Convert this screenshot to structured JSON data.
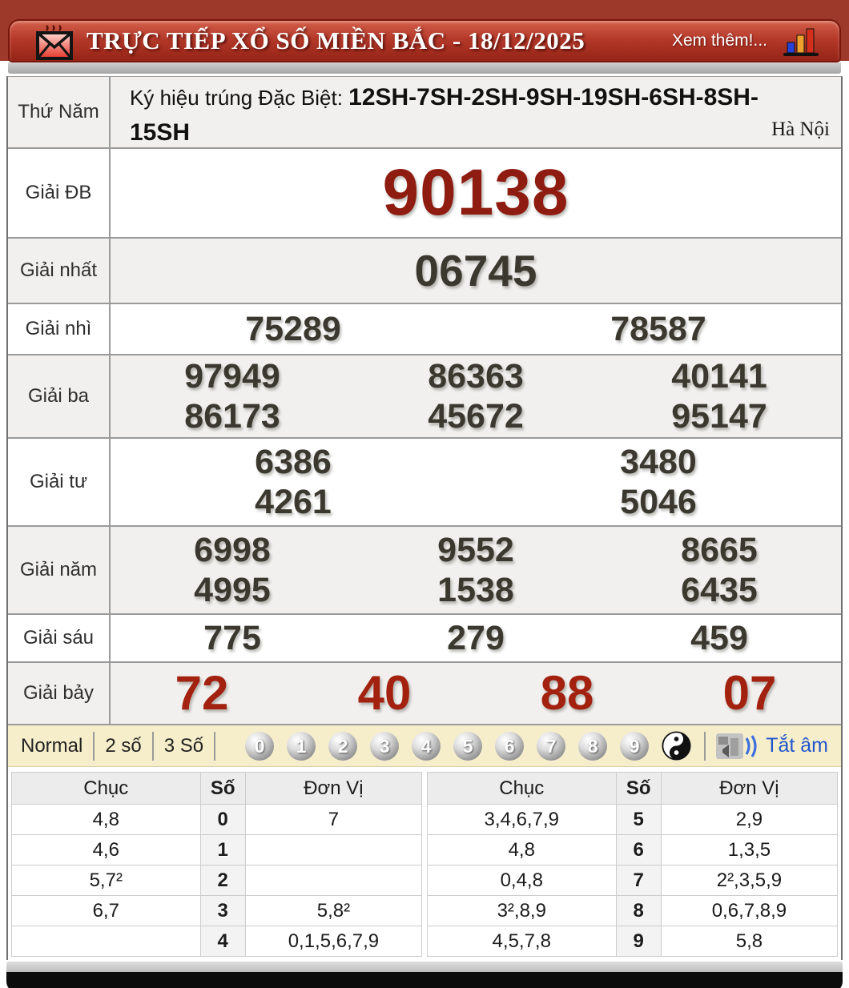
{
  "header": {
    "title": "TRỰC TIẾP XỔ SỐ MIỀN BẮC - 18/12/2025",
    "more_label": "Xem thêm!...",
    "bar_color": "#b5392a",
    "bg_color": "#9d392b"
  },
  "info": {
    "day": "Thứ Năm",
    "symbol_label": "Ký hiệu trúng Đặc Biệt: ",
    "symbol_line1": "12SH-7SH-2SH-9SH-19SH-6SH-8SH-",
    "symbol_line2": "15SH",
    "province": "Hà Nội"
  },
  "prizes": [
    {
      "key": "giai-db",
      "label": "Giải ĐB",
      "color": "#8e1c10",
      "rows": [
        [
          "90138"
        ]
      ]
    },
    {
      "key": "giai-nhat",
      "label": "Giải nhất",
      "color": "#3b392f",
      "rows": [
        [
          "06745"
        ]
      ]
    },
    {
      "key": "giai-nhi",
      "label": "Giải nhì",
      "color": "#3b392f",
      "rows": [
        [
          "75289",
          "78587"
        ]
      ]
    },
    {
      "key": "giai-ba",
      "label": "Giải ba",
      "color": "#3b392f",
      "rows": [
        [
          "97949",
          "86363",
          "40141"
        ],
        [
          "86173",
          "45672",
          "95147"
        ]
      ]
    },
    {
      "key": "giai-tu",
      "label": "Giải tư",
      "color": "#3b392f",
      "rows": [
        [
          "6386",
          "3480"
        ],
        [
          "4261",
          "5046"
        ]
      ]
    },
    {
      "key": "giai-nam",
      "label": "Giải năm",
      "color": "#3b392f",
      "rows": [
        [
          "6998",
          "9552",
          "8665"
        ],
        [
          "4995",
          "1538",
          "6435"
        ]
      ]
    },
    {
      "key": "giai-sau",
      "label": "Giải sáu",
      "color": "#3b392f",
      "rows": [
        [
          "775",
          "279",
          "459"
        ]
      ]
    },
    {
      "key": "giai-bay",
      "label": "Giải bảy",
      "color": "#a2210f",
      "rows": [
        [
          "72",
          "40",
          "88",
          "07"
        ]
      ]
    }
  ],
  "controls": {
    "modes": [
      {
        "key": "normal",
        "label": "Normal"
      },
      {
        "key": "2so",
        "label": "2 số"
      },
      {
        "key": "3so",
        "label": "3 Số"
      }
    ],
    "digits": [
      "0",
      "1",
      "2",
      "3",
      "4",
      "5",
      "6",
      "7",
      "8",
      "9"
    ],
    "mute_label": "Tắt âm",
    "mute_color": "#2255cc"
  },
  "summary": {
    "left": {
      "headers": [
        "Chục",
        "Số",
        "Đơn Vị"
      ],
      "rows": [
        [
          "4,8",
          "0",
          "7"
        ],
        [
          "4,6",
          "1",
          ""
        ],
        [
          "5,7²",
          "2",
          ""
        ],
        [
          "6,7",
          "3",
          "5,8²"
        ],
        [
          "",
          "4",
          "0,1,5,6,7,9"
        ]
      ]
    },
    "right": {
      "headers": [
        "Chục",
        "Số",
        "Đơn Vị"
      ],
      "rows": [
        [
          "3,4,6,7,9",
          "5",
          "2,9"
        ],
        [
          "4,8",
          "6",
          "1,3,5"
        ],
        [
          "0,4,8",
          "7",
          "2²,3,5,9"
        ],
        [
          "3²,8,9",
          "8",
          "0,6,7,8,9"
        ],
        [
          "4,5,7,8",
          "9",
          "5,8"
        ]
      ]
    }
  }
}
